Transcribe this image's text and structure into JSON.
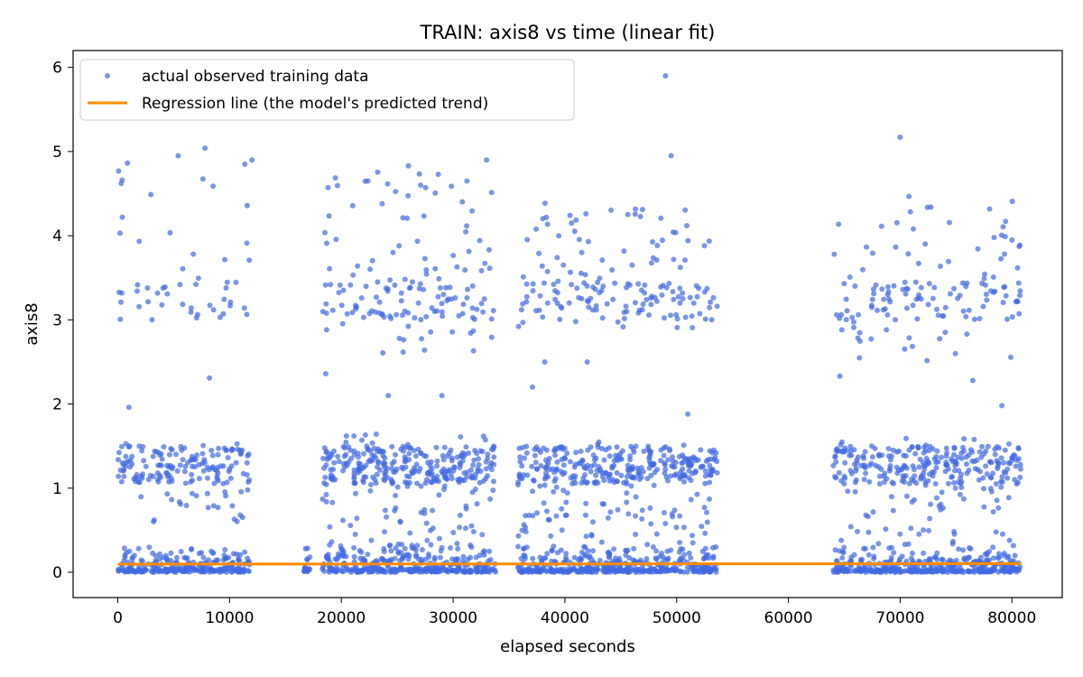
{
  "chart_data": {
    "type": "scatter",
    "title": "TRAIN: axis8 vs time (linear fit)",
    "xlabel": "elapsed seconds",
    "ylabel": "axis8",
    "xlim": [
      -4000,
      84500
    ],
    "ylim": [
      -0.3,
      6.2
    ],
    "xticks": [
      0,
      10000,
      20000,
      30000,
      40000,
      50000,
      60000,
      70000,
      80000
    ],
    "yticks": [
      0,
      1,
      2,
      3,
      4,
      5,
      6
    ],
    "grid": false,
    "legend_position": "top-left",
    "colors": {
      "scatter": "#4169e1",
      "line": "#ff8c00"
    },
    "series": [
      {
        "name": "actual observed training data",
        "kind": "scatter",
        "segments": [
          [
            0,
            11800
          ],
          [
            16500,
            17200
          ],
          [
            18300,
            33800
          ],
          [
            35800,
            53700
          ],
          [
            64000,
            80800
          ]
        ],
        "clusters": [
          {
            "range": [
              0,
              11800
            ],
            "low_density": 140,
            "mid_range": [
              0.6,
              1.55
            ],
            "mid_count": 170,
            "high_range": [
              3.0,
              4.9
            ],
            "high_count": 50
          },
          {
            "range": [
              18300,
              33800
            ],
            "low_density": 200,
            "mid_range": [
              0.3,
              1.65
            ],
            "mid_count": 330,
            "high_range": [
              2.6,
              4.8
            ],
            "high_count": 150
          },
          {
            "range": [
              35800,
              53700
            ],
            "low_density": 220,
            "mid_range": [
              0.3,
              1.55
            ],
            "mid_count": 360,
            "high_range": [
              2.9,
              4.45
            ],
            "high_count": 160
          },
          {
            "range": [
              64000,
              80800
            ],
            "low_density": 200,
            "mid_range": [
              0.3,
              1.6
            ],
            "mid_count": 300,
            "high_range": [
              2.5,
              4.5
            ],
            "high_count": 140
          }
        ],
        "outliers": [
          {
            "x": 300,
            "y": 4.62
          },
          {
            "x": 400,
            "y": 4.22
          },
          {
            "x": 200,
            "y": 4.03
          },
          {
            "x": 5400,
            "y": 4.95
          },
          {
            "x": 7800,
            "y": 5.04
          },
          {
            "x": 12000,
            "y": 4.9
          },
          {
            "x": 26000,
            "y": 4.83
          },
          {
            "x": 33000,
            "y": 4.9
          },
          {
            "x": 49000,
            "y": 5.9
          },
          {
            "x": 49500,
            "y": 4.95
          },
          {
            "x": 70000,
            "y": 5.17
          },
          {
            "x": 8200,
            "y": 2.31
          },
          {
            "x": 18600,
            "y": 2.36
          },
          {
            "x": 24200,
            "y": 2.1
          },
          {
            "x": 29000,
            "y": 2.1
          },
          {
            "x": 37100,
            "y": 2.2
          },
          {
            "x": 38200,
            "y": 2.5
          },
          {
            "x": 42000,
            "y": 2.5
          },
          {
            "x": 51000,
            "y": 1.88
          },
          {
            "x": 64600,
            "y": 2.33
          },
          {
            "x": 76500,
            "y": 2.28
          },
          {
            "x": 79100,
            "y": 1.98
          },
          {
            "x": 1000,
            "y": 1.96
          }
        ]
      },
      {
        "name": "Regression line (the model's predicted trend)",
        "kind": "line",
        "x": [
          0,
          80800
        ],
        "y": [
          0.097,
          0.103
        ]
      }
    ]
  }
}
